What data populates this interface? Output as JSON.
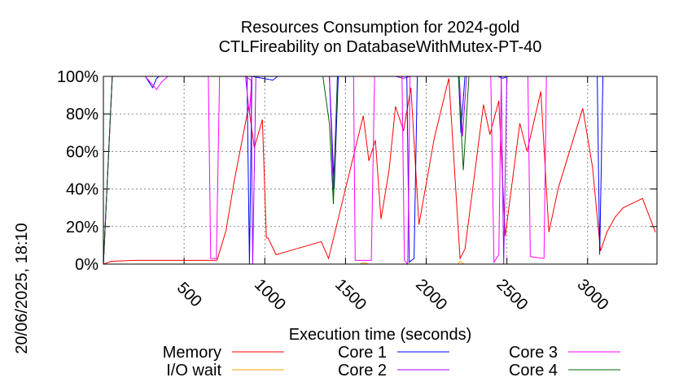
{
  "chart_data": {
    "type": "line",
    "title": [
      "Resources Consumption for 2024-gold",
      "CTLFireability on DatabaseWithMutex-PT-40"
    ],
    "xlabel": "Execution time (seconds)",
    "ylabel": "",
    "side_label": "20/06/2025, 18:10",
    "xlim": [
      0,
      3430
    ],
    "ylim": [
      0,
      100
    ],
    "xticks": [
      500,
      1000,
      1500,
      2000,
      2500,
      3000
    ],
    "xtick_labels": [
      "500",
      "1000",
      "1500",
      "2000",
      "2500",
      "3000"
    ],
    "yticks": [
      0,
      20,
      40,
      60,
      80,
      100
    ],
    "ytick_labels": [
      "0%",
      "20%",
      "40%",
      "60%",
      "80%",
      "100%"
    ],
    "grid": true,
    "legend_position": "bottom",
    "series": [
      {
        "name": "Memory",
        "color": "#ff0000",
        "points": [
          [
            0,
            0
          ],
          [
            50,
            1.5
          ],
          [
            200,
            2
          ],
          [
            700,
            2
          ],
          [
            705,
            2.3
          ],
          [
            760,
            18
          ],
          [
            810,
            44
          ],
          [
            900,
            84
          ],
          [
            935,
            62
          ],
          [
            985,
            77
          ],
          [
            1010,
            14
          ],
          [
            1020,
            14
          ],
          [
            1070,
            5
          ],
          [
            1150,
            7
          ],
          [
            1350,
            12
          ],
          [
            1395,
            3
          ],
          [
            1610,
            79
          ],
          [
            1645,
            55
          ],
          [
            1685,
            66
          ],
          [
            1720,
            24
          ],
          [
            1770,
            50
          ],
          [
            1810,
            84
          ],
          [
            1860,
            71
          ],
          [
            1905,
            94
          ],
          [
            1955,
            21
          ],
          [
            2050,
            67
          ],
          [
            2140,
            99
          ],
          [
            2210,
            3
          ],
          [
            2240,
            8
          ],
          [
            2355,
            85
          ],
          [
            2395,
            69
          ],
          [
            2450,
            87
          ],
          [
            2490,
            15
          ],
          [
            2580,
            75
          ],
          [
            2625,
            60
          ],
          [
            2710,
            92
          ],
          [
            2760,
            17
          ],
          [
            2820,
            41
          ],
          [
            2970,
            83
          ],
          [
            3030,
            52
          ],
          [
            3080,
            7
          ],
          [
            3120,
            17
          ],
          [
            3170,
            25
          ],
          [
            3220,
            30
          ],
          [
            3340,
            35
          ],
          [
            3420,
            17
          ]
        ]
      },
      {
        "name": "I/O wait",
        "color": "#ffa500",
        "points": [
          [
            0,
            0
          ],
          [
            1590,
            0
          ],
          [
            1615,
            0.8
          ],
          [
            1640,
            0
          ],
          [
            2195,
            0
          ],
          [
            2210,
            1.5
          ],
          [
            2235,
            0
          ],
          [
            3430,
            0
          ]
        ]
      },
      {
        "name": "Core 1",
        "color": "#0000ff",
        "points": [
          [
            0,
            0
          ],
          [
            55,
            100
          ],
          [
            260,
            100
          ],
          [
            305,
            94
          ],
          [
            330,
            99
          ],
          [
            345,
            100
          ],
          [
            890,
            100
          ],
          [
            905,
            0
          ],
          [
            920,
            100
          ],
          [
            1050,
            98
          ],
          [
            1080,
            100
          ],
          [
            1400,
            100
          ],
          [
            1430,
            40
          ],
          [
            1455,
            100
          ],
          [
            1880,
            100
          ],
          [
            1895,
            1
          ],
          [
            1925,
            3
          ],
          [
            1945,
            100
          ],
          [
            2200,
            100
          ],
          [
            2215,
            70
          ],
          [
            2240,
            100
          ],
          [
            2445,
            100
          ],
          [
            2475,
            99
          ],
          [
            2505,
            100
          ],
          [
            3060,
            100
          ],
          [
            3075,
            5
          ],
          [
            3095,
            100
          ],
          [
            3430,
            100
          ]
        ]
      },
      {
        "name": "Core 2",
        "color": "#a000ff",
        "points": [
          [
            0,
            0
          ],
          [
            55,
            100
          ],
          [
            880,
            100
          ],
          [
            915,
            98
          ],
          [
            925,
            0
          ],
          [
            945,
            100
          ],
          [
            1400,
            100
          ],
          [
            1425,
            38
          ],
          [
            1450,
            100
          ],
          [
            1810,
            100
          ],
          [
            1860,
            99
          ],
          [
            1900,
            100
          ],
          [
            2205,
            100
          ],
          [
            2225,
            68
          ],
          [
            2250,
            100
          ],
          [
            2465,
            100
          ],
          [
            2480,
            0
          ],
          [
            2500,
            100
          ],
          [
            3430,
            100
          ]
        ]
      },
      {
        "name": "Core 3",
        "color": "#ff00ff",
        "points": [
          [
            0,
            0
          ],
          [
            55,
            100
          ],
          [
            260,
            100
          ],
          [
            330,
            93
          ],
          [
            360,
            97
          ],
          [
            400,
            100
          ],
          [
            650,
            100
          ],
          [
            665,
            3
          ],
          [
            700,
            3
          ],
          [
            720,
            100
          ],
          [
            880,
            100
          ],
          [
            905,
            80
          ],
          [
            920,
            100
          ],
          [
            1550,
            100
          ],
          [
            1560,
            2
          ],
          [
            1660,
            2
          ],
          [
            1680,
            100
          ],
          [
            1850,
            100
          ],
          [
            1865,
            2
          ],
          [
            1885,
            0
          ],
          [
            1900,
            100
          ],
          [
            2400,
            100
          ],
          [
            2420,
            1
          ],
          [
            2450,
            5
          ],
          [
            2465,
            100
          ],
          [
            2630,
            100
          ],
          [
            2645,
            4
          ],
          [
            2730,
            3
          ],
          [
            2745,
            100
          ],
          [
            3430,
            100
          ]
        ]
      },
      {
        "name": "Core 4",
        "color": "#006400",
        "points": [
          [
            0,
            0
          ],
          [
            55,
            100
          ],
          [
            1360,
            100
          ],
          [
            1400,
            75
          ],
          [
            1425,
            32
          ],
          [
            1450,
            100
          ],
          [
            2200,
            100
          ],
          [
            2230,
            50
          ],
          [
            2265,
            100
          ],
          [
            3430,
            100
          ]
        ]
      }
    ]
  }
}
